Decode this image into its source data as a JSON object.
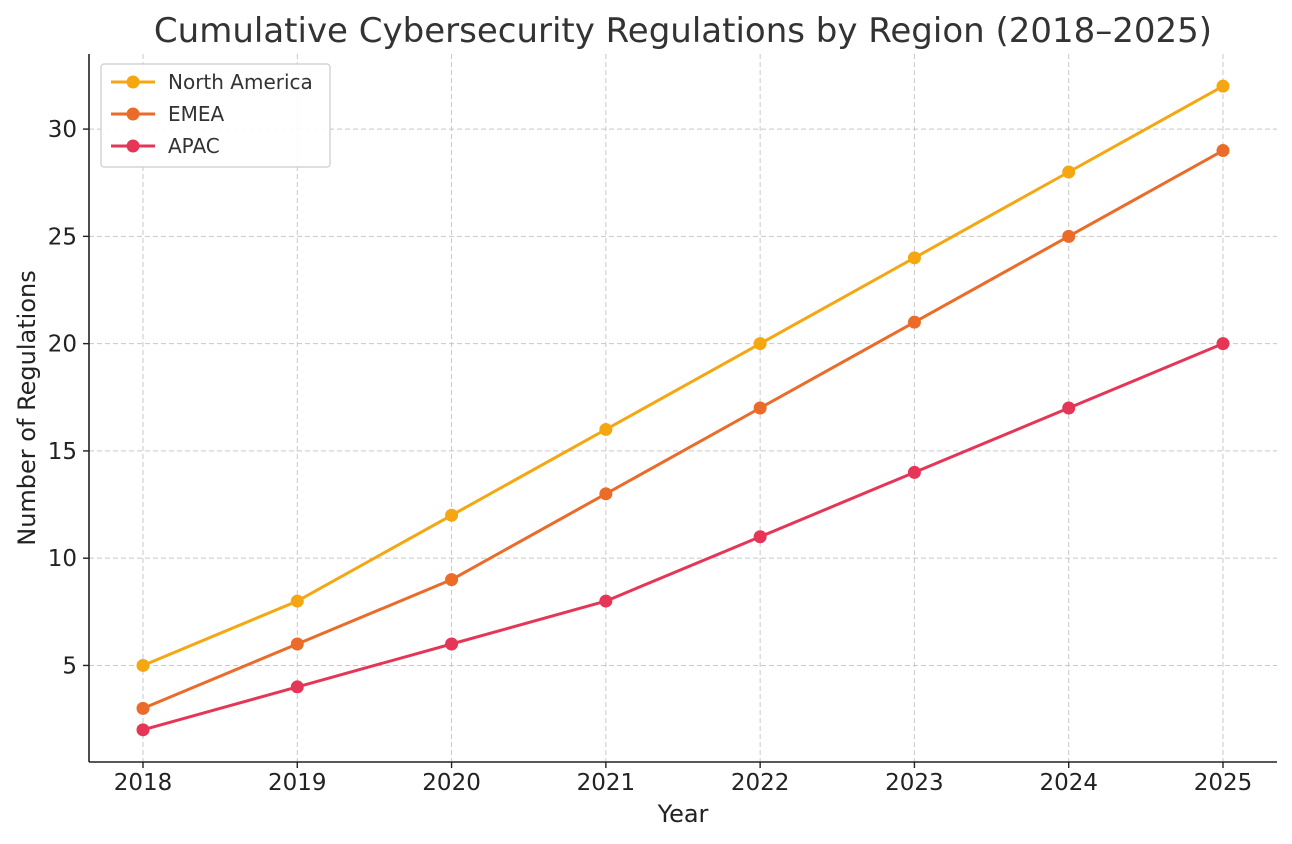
{
  "chart_data": {
    "type": "line",
    "title": "Cumulative Cybersecurity Regulations by Region (2018–2025)",
    "xlabel": "Year",
    "ylabel": "Number of Regulations",
    "x": [
      2018,
      2019,
      2020,
      2021,
      2022,
      2023,
      2024,
      2025
    ],
    "x_tick_labels": [
      "2018",
      "2019",
      "2020",
      "2021",
      "2022",
      "2023",
      "2024",
      "2025"
    ],
    "y_ticks": [
      5,
      10,
      15,
      20,
      25,
      30
    ],
    "y_tick_labels": [
      "5",
      "10",
      "15",
      "20",
      "25",
      "30"
    ],
    "ylim": [
      0.5,
      33.5
    ],
    "xlim": [
      2017.65,
      2025.35
    ],
    "grid": true,
    "legend_position": "top-left",
    "series": [
      {
        "name": "North America",
        "color": "#F5A711",
        "marker": "circle",
        "values": [
          5,
          8,
          12,
          16,
          20,
          24,
          28,
          32
        ]
      },
      {
        "name": "EMEA",
        "color": "#EB6B29",
        "marker": "circle",
        "values": [
          3,
          6,
          9,
          13,
          17,
          21,
          25,
          29
        ]
      },
      {
        "name": "APAC",
        "color": "#E63657",
        "marker": "circle",
        "values": [
          2,
          4,
          6,
          8,
          11,
          14,
          17,
          20
        ]
      }
    ]
  }
}
